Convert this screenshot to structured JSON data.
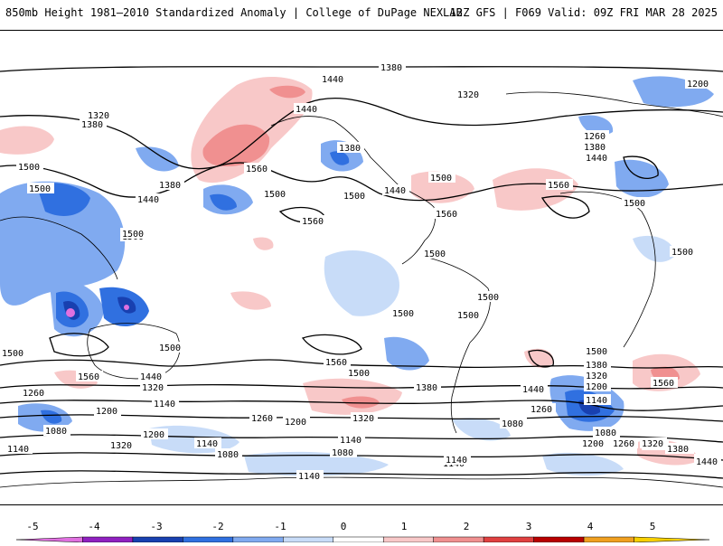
{
  "header": {
    "title": "850mb Height 1981–2010 Standardized Anomaly | College of DuPage NEXLAB",
    "run": "12Z GFS | F069 Valid: 09Z FRI MAR 28 2025"
  },
  "colorbar": {
    "ticks": [
      "-5",
      "-4",
      "-3",
      "-2",
      "-1",
      "0",
      "1",
      "2",
      "3",
      "4",
      "5"
    ],
    "colors": [
      "#e070e0",
      "#9020c0",
      "#1840b0",
      "#3070e0",
      "#80aaf0",
      "#c8dcf8",
      "#ffffff",
      "#f8c8c8",
      "#f09090",
      "#e04040",
      "#b80000",
      "#f0a020",
      "#f8d000"
    ]
  },
  "contour_labels": [
    {
      "text": "1380"
    },
    {
      "text": "1440"
    },
    {
      "text": "1320"
    },
    {
      "text": "1200"
    },
    {
      "text": "1380"
    },
    {
      "text": "1320"
    },
    {
      "text": "1440"
    },
    {
      "text": "1500"
    },
    {
      "text": "1560"
    },
    {
      "text": "1500"
    },
    {
      "text": "1380"
    },
    {
      "text": "1440"
    },
    {
      "text": "1500"
    },
    {
      "text": "1260"
    },
    {
      "text": "1380"
    },
    {
      "text": "1440"
    },
    {
      "text": "1380"
    },
    {
      "text": "1500"
    },
    {
      "text": "1560"
    },
    {
      "text": "1500"
    },
    {
      "text": "1560"
    },
    {
      "text": "1440"
    },
    {
      "text": "1500"
    },
    {
      "text": "1500"
    },
    {
      "text": "1500"
    },
    {
      "text": "1500"
    },
    {
      "text": "1500"
    },
    {
      "text": "1500"
    },
    {
      "text": "1500"
    },
    {
      "text": "1500"
    },
    {
      "text": "1500"
    },
    {
      "text": "1560"
    },
    {
      "text": "1560"
    },
    {
      "text": "1500"
    },
    {
      "text": "1440"
    },
    {
      "text": "1380"
    },
    {
      "text": "1260"
    },
    {
      "text": "1200"
    },
    {
      "text": "1320"
    },
    {
      "text": "1140"
    },
    {
      "text": "1440"
    },
    {
      "text": "1260"
    },
    {
      "text": "1200"
    },
    {
      "text": "1320"
    },
    {
      "text": "1140"
    },
    {
      "text": "1440"
    },
    {
      "text": "1500"
    },
    {
      "text": "1380"
    },
    {
      "text": "1320"
    },
    {
      "text": "1200"
    },
    {
      "text": "1140"
    },
    {
      "text": "1080"
    },
    {
      "text": "1260"
    },
    {
      "text": "1320"
    },
    {
      "text": "1380"
    },
    {
      "text": "1440"
    },
    {
      "text": "1560"
    },
    {
      "text": "1500"
    },
    {
      "text": "1080"
    },
    {
      "text": "1200"
    },
    {
      "text": "1140"
    },
    {
      "text": "1320"
    },
    {
      "text": "1080"
    },
    {
      "text": "1140"
    },
    {
      "text": "1080"
    },
    {
      "text": "1140"
    },
    {
      "text": "1140"
    },
    {
      "text": "1080"
    },
    {
      "text": "1200"
    },
    {
      "text": "1260"
    },
    {
      "text": "1320"
    },
    {
      "text": "1380"
    },
    {
      "text": "1440"
    },
    {
      "text": "1560"
    },
    {
      "text": "1140"
    }
  ]
}
